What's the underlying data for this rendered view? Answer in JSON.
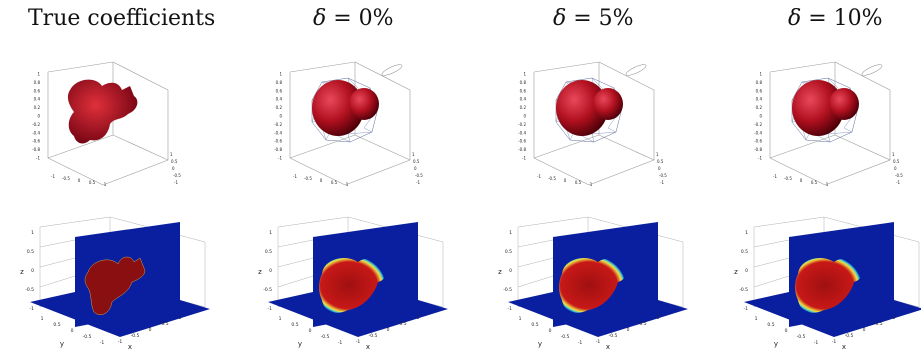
{
  "columns": [
    {
      "title": "True coefficients"
    },
    {
      "title_symbol": "δ",
      "title_value": " = 0%"
    },
    {
      "title_symbol": "δ",
      "title_value": " = 5%"
    },
    {
      "title_symbol": "δ",
      "title_value": " = 10%"
    }
  ],
  "top_axes": {
    "z_ticks": [
      "1",
      "0.8",
      "0.6",
      "0.4",
      "0.2",
      "0",
      "-0.2",
      "-0.4",
      "-0.6",
      "-0.8",
      "-1"
    ],
    "x_ticks": [
      "-1",
      "-0.5",
      "0",
      "0.5",
      "1"
    ],
    "y_ticks": [
      "-1",
      "-0.5",
      "0",
      "0.5",
      "1"
    ]
  },
  "bottom_axes": {
    "z_ticks": [
      "1",
      "0.5",
      "0",
      "-0.5",
      "-1"
    ],
    "x_ticks": [
      "-1",
      "-0.5",
      "0",
      "0.5",
      "1"
    ],
    "y_ticks": [
      "1",
      "0.5",
      "0",
      "-0.5",
      "-1"
    ],
    "xlabel": "x",
    "ylabel": "y",
    "zlabel": "z"
  },
  "colors": {
    "shape_red": "#b0101e",
    "slice_blue": "#0a1fa0",
    "slice_red": "#8a0f10"
  }
}
